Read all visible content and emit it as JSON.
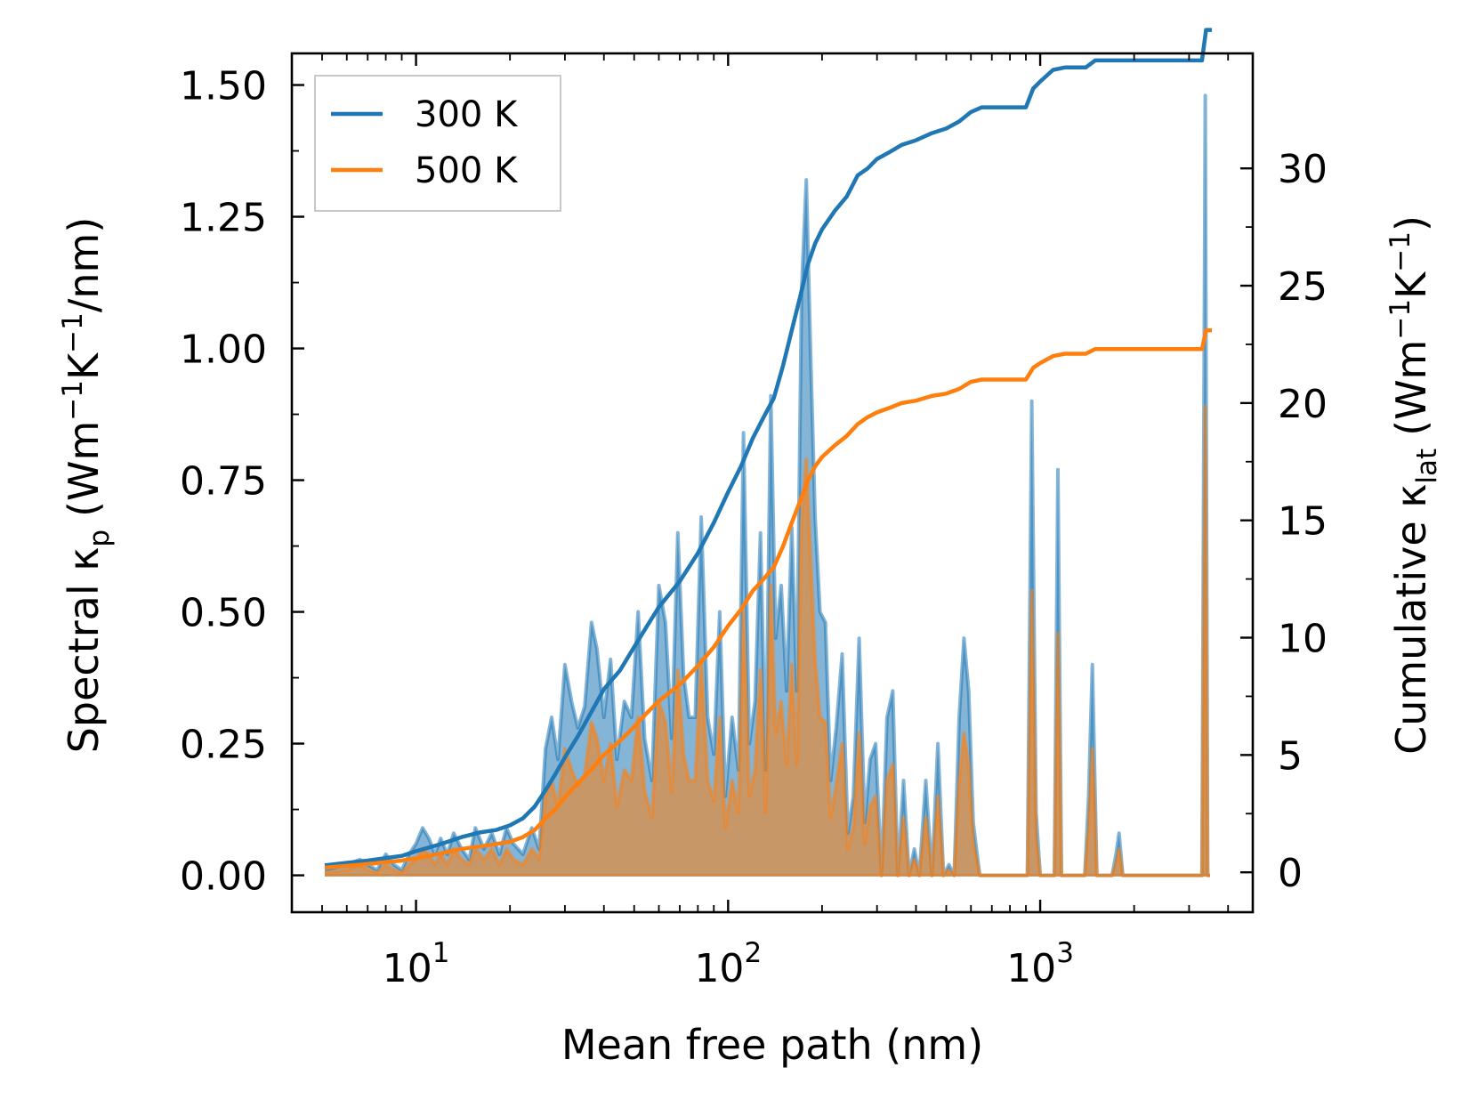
{
  "chart_data": {
    "type": "line",
    "title": "",
    "xlabel": "Mean free path (nm)",
    "ylabel_left": {
      "main": "Spectral κ",
      "sub": "p",
      "unit_prefix": "(Wm",
      "sup1": "−1",
      "unit_mid": "K",
      "sup2": "−1",
      "unit_suffix": "/nm)"
    },
    "ylabel_right": {
      "main": "Cumulative κ",
      "sub": "lat",
      "unit_prefix": "(Wm",
      "sup1": "−1",
      "unit_mid": "K",
      "sup2": "−1",
      "unit_suffix": ")"
    },
    "xscale": "log",
    "xlim": [
      4.0,
      4800
    ],
    "ylim_left": [
      -0.07,
      1.56
    ],
    "ylim_right": [
      -1.7,
      34.9
    ],
    "x_ticks": [
      {
        "value": 10,
        "base": "10",
        "exp": "1"
      },
      {
        "value": 100,
        "base": "10",
        "exp": "2"
      },
      {
        "value": 1000,
        "base": "10",
        "exp": "3"
      }
    ],
    "y_ticks_left": [
      {
        "value": 0.0,
        "label": "0.00"
      },
      {
        "value": 0.25,
        "label": "0.25"
      },
      {
        "value": 0.5,
        "label": "0.50"
      },
      {
        "value": 0.75,
        "label": "0.75"
      },
      {
        "value": 1.0,
        "label": "1.00"
      },
      {
        "value": 1.25,
        "label": "1.25"
      },
      {
        "value": 1.5,
        "label": "1.50"
      }
    ],
    "y_ticks_right": [
      {
        "value": 0,
        "label": "0"
      },
      {
        "value": 5,
        "label": "5"
      },
      {
        "value": 10,
        "label": "10"
      },
      {
        "value": 15,
        "label": "15"
      },
      {
        "value": 20,
        "label": "20"
      },
      {
        "value": 25,
        "label": "25"
      },
      {
        "value": 30,
        "label": "30"
      }
    ],
    "legend": {
      "placement": "top-left",
      "entries": [
        {
          "label": "300 K",
          "color": "#1f77b4"
        },
        {
          "label": "500 K",
          "color": "#ff7f0e"
        }
      ]
    },
    "series": [
      {
        "name": "300 K spectral",
        "axis": "left",
        "kind": "filled",
        "color": "#1f77b4",
        "x": [
          5.1,
          6.0,
          6.6,
          7.0,
          7.5,
          8.0,
          8.5,
          9.0,
          9.5,
          10.0,
          10.5,
          11.0,
          11.5,
          12.0,
          12.6,
          13.2,
          14.0,
          14.8,
          15.5,
          16.5,
          17.5,
          18.5,
          19.5,
          20.5,
          22.0,
          23.5,
          24.8,
          26.0,
          27.2,
          28.5,
          30.0,
          31.5,
          33.0,
          34.7,
          36.5,
          38.0,
          40.0,
          42.0,
          44.0,
          46.5,
          49.0,
          51.5,
          54.0,
          57.0,
          60.0,
          63.0,
          66.0,
          69.0,
          72.0,
          75.0,
          78.5,
          82.0,
          86.0,
          90.0,
          94.0,
          98.0,
          103.0,
          108.0,
          112.0,
          117.0,
          122.0,
          127.0,
          132.0,
          137.0,
          142.0,
          148.0,
          154.0,
          160.0,
          166.0,
          172.0,
          178.0,
          184.0,
          190.0,
          197.0,
          205.0,
          213.0,
          222.0,
          232.0,
          242.0,
          252.0,
          263.0,
          274.0,
          285.0,
          297.0,
          310.0,
          323.0,
          337.0,
          350.0,
          365.0,
          380.0,
          395.0,
          410.0,
          430.0,
          450.0,
          470.0,
          490.0,
          510.0,
          530.0,
          550.0,
          570.0,
          590.0,
          610.0,
          640.0,
          700.0,
          800.0,
          870.0,
          910.0,
          940.0,
          970.0,
          1000.0,
          1060.0,
          1110.0,
          1140.0,
          1170.0,
          1220.0,
          1300.0,
          1390.0,
          1430.0,
          1470.0,
          1520.0,
          1620.0,
          1700.0,
          1750.0,
          1790.0,
          1840.0,
          1950.0,
          2500.0,
          3300.0,
          3380.0,
          3440.0,
          3500.0
        ],
        "y": [
          0.01,
          0.02,
          0.03,
          0.02,
          0.01,
          0.04,
          0.02,
          0.01,
          0.04,
          0.06,
          0.09,
          0.07,
          0.04,
          0.07,
          0.04,
          0.08,
          0.05,
          0.03,
          0.09,
          0.05,
          0.08,
          0.04,
          0.09,
          0.06,
          0.04,
          0.09,
          0.05,
          0.24,
          0.3,
          0.22,
          0.4,
          0.33,
          0.28,
          0.32,
          0.48,
          0.43,
          0.3,
          0.41,
          0.22,
          0.33,
          0.3,
          0.5,
          0.26,
          0.18,
          0.55,
          0.48,
          0.26,
          0.65,
          0.38,
          0.3,
          0.3,
          0.68,
          0.3,
          0.23,
          0.5,
          0.15,
          0.3,
          0.2,
          0.84,
          0.25,
          0.33,
          0.65,
          0.2,
          0.91,
          0.45,
          0.55,
          0.35,
          0.66,
          0.35,
          1.11,
          1.32,
          0.98,
          0.68,
          0.5,
          0.48,
          0.18,
          0.28,
          0.42,
          0.08,
          0.15,
          0.45,
          0.1,
          0.22,
          0.25,
          0.0,
          0.3,
          0.35,
          0.0,
          0.18,
          0.0,
          0.05,
          0.0,
          0.18,
          0.0,
          0.25,
          0.0,
          0.02,
          0.0,
          0.3,
          0.45,
          0.35,
          0.1,
          0.0,
          0.0,
          0.0,
          0.0,
          0.0,
          0.9,
          0.12,
          0.0,
          0.0,
          0.0,
          0.77,
          0.0,
          0.0,
          0.0,
          0.0,
          0.15,
          0.4,
          0.0,
          0.0,
          0.0,
          0.04,
          0.08,
          0.0,
          0.0,
          0.0,
          0.0,
          1.48,
          0.0,
          0.0
        ]
      },
      {
        "name": "500 K spectral",
        "axis": "left",
        "kind": "filled",
        "color": "#ff7f0e",
        "x": [
          5.1,
          6.0,
          6.6,
          7.0,
          7.5,
          8.0,
          8.5,
          9.0,
          9.5,
          10.0,
          10.5,
          11.0,
          11.5,
          12.0,
          12.6,
          13.2,
          14.0,
          14.8,
          15.5,
          16.5,
          17.5,
          18.5,
          19.5,
          20.5,
          22.0,
          23.5,
          24.8,
          26.0,
          27.2,
          28.5,
          30.0,
          31.5,
          33.0,
          34.7,
          36.5,
          38.0,
          40.0,
          42.0,
          44.0,
          46.5,
          49.0,
          51.5,
          54.0,
          57.0,
          60.0,
          63.0,
          66.0,
          69.0,
          72.0,
          75.0,
          78.5,
          82.0,
          86.0,
          90.0,
          94.0,
          98.0,
          103.0,
          108.0,
          112.0,
          117.0,
          122.0,
          127.0,
          132.0,
          137.0,
          142.0,
          148.0,
          154.0,
          160.0,
          166.0,
          172.0,
          178.0,
          184.0,
          190.0,
          197.0,
          205.0,
          213.0,
          222.0,
          232.0,
          242.0,
          252.0,
          263.0,
          274.0,
          285.0,
          297.0,
          310.0,
          323.0,
          337.0,
          350.0,
          365.0,
          380.0,
          395.0,
          410.0,
          430.0,
          450.0,
          470.0,
          490.0,
          510.0,
          530.0,
          550.0,
          570.0,
          590.0,
          610.0,
          640.0,
          700.0,
          800.0,
          870.0,
          910.0,
          940.0,
          970.0,
          1000.0,
          1060.0,
          1110.0,
          1140.0,
          1170.0,
          1220.0,
          1300.0,
          1390.0,
          1430.0,
          1470.0,
          1520.0,
          1620.0,
          1700.0,
          1750.0,
          1790.0,
          1840.0,
          1950.0,
          2500.0,
          3300.0,
          3380.0,
          3440.0,
          3500.0
        ],
        "y": [
          0.005,
          0.01,
          0.02,
          0.01,
          0.005,
          0.02,
          0.01,
          0.005,
          0.02,
          0.03,
          0.05,
          0.04,
          0.02,
          0.04,
          0.02,
          0.05,
          0.03,
          0.02,
          0.05,
          0.03,
          0.05,
          0.02,
          0.05,
          0.03,
          0.02,
          0.05,
          0.03,
          0.15,
          0.18,
          0.13,
          0.24,
          0.2,
          0.17,
          0.19,
          0.29,
          0.26,
          0.18,
          0.25,
          0.13,
          0.2,
          0.18,
          0.3,
          0.16,
          0.11,
          0.33,
          0.29,
          0.16,
          0.39,
          0.23,
          0.18,
          0.18,
          0.41,
          0.18,
          0.14,
          0.3,
          0.09,
          0.18,
          0.12,
          0.5,
          0.15,
          0.2,
          0.39,
          0.12,
          0.55,
          0.27,
          0.33,
          0.21,
          0.4,
          0.21,
          0.67,
          0.79,
          0.59,
          0.41,
          0.3,
          0.29,
          0.11,
          0.17,
          0.25,
          0.05,
          0.09,
          0.27,
          0.06,
          0.13,
          0.15,
          0.0,
          0.18,
          0.21,
          0.0,
          0.11,
          0.0,
          0.03,
          0.0,
          0.11,
          0.0,
          0.15,
          0.0,
          0.01,
          0.0,
          0.18,
          0.27,
          0.21,
          0.06,
          0.0,
          0.0,
          0.0,
          0.0,
          0.0,
          0.54,
          0.07,
          0.0,
          0.0,
          0.0,
          0.46,
          0.0,
          0.0,
          0.0,
          0.0,
          0.09,
          0.24,
          0.0,
          0.0,
          0.0,
          0.02,
          0.05,
          0.0,
          0.0,
          0.0,
          0.0,
          0.89,
          0.0,
          0.0
        ]
      },
      {
        "name": "300 K cumulative",
        "axis": "right",
        "kind": "line",
        "color": "#1f77b4",
        "x": [
          5.1,
          7.0,
          9.0,
          10.0,
          12.0,
          14.0,
          16.0,
          18.0,
          20.0,
          22.0,
          24.0,
          26.0,
          28.0,
          30.0,
          33.0,
          36.0,
          40.0,
          45.0,
          50.0,
          55.0,
          60.0,
          70.0,
          80.0,
          90.0,
          100.0,
          110.0,
          120.0,
          130.0,
          140.0,
          150.0,
          160.0,
          170.0,
          180.0,
          190.0,
          200.0,
          220.0,
          240.0,
          260.0,
          280.0,
          300.0,
          330.0,
          360.0,
          400.0,
          450.0,
          500.0,
          550.0,
          600.0,
          650.0,
          900.0,
          950.0,
          1000.0,
          1100.0,
          1200.0,
          1400.0,
          1500.0,
          1700.0,
          3300.0,
          3400.0,
          3550.0
        ],
        "y": [
          0.3,
          0.5,
          0.7,
          0.9,
          1.2,
          1.5,
          1.7,
          1.8,
          2.0,
          2.3,
          2.8,
          3.5,
          4.2,
          4.9,
          5.8,
          6.7,
          7.8,
          8.6,
          9.6,
          10.5,
          11.3,
          12.4,
          13.6,
          14.9,
          16.2,
          17.3,
          18.5,
          19.4,
          20.2,
          21.6,
          23.1,
          24.5,
          25.9,
          26.8,
          27.4,
          28.2,
          28.8,
          29.7,
          30.0,
          30.4,
          30.7,
          31.0,
          31.2,
          31.5,
          31.7,
          32.0,
          32.4,
          32.6,
          32.6,
          33.4,
          33.7,
          34.2,
          34.3,
          34.3,
          34.6,
          34.6,
          34.6,
          35.9,
          35.9
        ]
      },
      {
        "name": "500 K cumulative",
        "axis": "right",
        "kind": "line",
        "color": "#ff7f0e",
        "x": [
          5.1,
          7.0,
          9.0,
          10.0,
          12.0,
          14.0,
          16.0,
          18.0,
          20.0,
          22.0,
          24.0,
          26.0,
          28.0,
          30.0,
          33.0,
          36.0,
          40.0,
          45.0,
          50.0,
          55.0,
          60.0,
          70.0,
          80.0,
          90.0,
          100.0,
          110.0,
          120.0,
          130.0,
          140.0,
          150.0,
          160.0,
          170.0,
          180.0,
          190.0,
          200.0,
          220.0,
          240.0,
          260.0,
          280.0,
          300.0,
          330.0,
          360.0,
          400.0,
          450.0,
          500.0,
          550.0,
          600.0,
          650.0,
          900.0,
          950.0,
          1000.0,
          1100.0,
          1200.0,
          1400.0,
          1500.0,
          1700.0,
          3300.0,
          3400.0,
          3550.0
        ],
        "y": [
          0.2,
          0.35,
          0.5,
          0.6,
          0.8,
          1.0,
          1.1,
          1.2,
          1.3,
          1.5,
          1.8,
          2.3,
          2.7,
          3.2,
          3.8,
          4.3,
          5.0,
          5.6,
          6.2,
          6.8,
          7.3,
          8.0,
          8.8,
          9.6,
          10.5,
          11.2,
          12.0,
          12.5,
          13.0,
          13.9,
          14.9,
          15.8,
          16.7,
          17.3,
          17.7,
          18.2,
          18.6,
          19.1,
          19.4,
          19.6,
          19.8,
          20.0,
          20.1,
          20.3,
          20.4,
          20.6,
          20.9,
          21.0,
          21.0,
          21.5,
          21.7,
          22.0,
          22.1,
          22.1,
          22.3,
          22.3,
          22.3,
          23.1,
          23.1
        ]
      }
    ]
  }
}
